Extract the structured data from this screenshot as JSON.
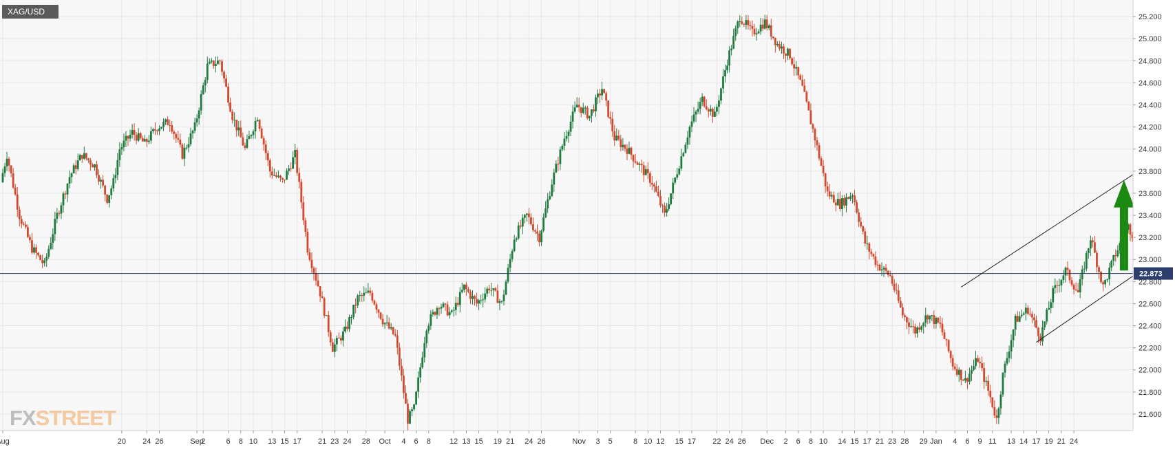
{
  "symbol": "XAG/USD",
  "watermark": {
    "part1": "FX",
    "part2": "STREET"
  },
  "current_price_label": "22.873",
  "colors": {
    "up": "#1e7a3e",
    "down": "#d1492e",
    "price_line": "#2c3e6b",
    "grid": "#e6e6e6",
    "arrow": "#1c8a12",
    "badge": "#5a5a5a"
  },
  "chart_data": {
    "type": "candlestick",
    "title": "",
    "xlabel": "",
    "ylabel": "",
    "ylim": [
      21.45,
      25.35
    ],
    "current_price": 22.873,
    "y_ticks": [
      "21.600",
      "21.800",
      "22.000",
      "22.200",
      "22.400",
      "22.600",
      "22.800",
      "23.000",
      "23.200",
      "23.400",
      "23.600",
      "23.800",
      "24.000",
      "24.200",
      "24.400",
      "24.600",
      "24.800",
      "25.000",
      "25.200"
    ],
    "x_ticks": [
      {
        "t": 0,
        "label": "Aug"
      },
      {
        "t": 19,
        "label": "20"
      },
      {
        "t": 23,
        "label": "24"
      },
      {
        "t": 25,
        "label": "26"
      },
      {
        "t": 31,
        "label": "Sep"
      },
      {
        "t": 32,
        "label": "2"
      },
      {
        "t": 36,
        "label": "6"
      },
      {
        "t": 38,
        "label": "8"
      },
      {
        "t": 40,
        "label": "10"
      },
      {
        "t": 43,
        "label": "13"
      },
      {
        "t": 45,
        "label": "15"
      },
      {
        "t": 47,
        "label": "17"
      },
      {
        "t": 51,
        "label": "21"
      },
      {
        "t": 53,
        "label": "23"
      },
      {
        "t": 55,
        "label": "24"
      },
      {
        "t": 58,
        "label": "28"
      },
      {
        "t": 61,
        "label": "Oct"
      },
      {
        "t": 64,
        "label": "4"
      },
      {
        "t": 66,
        "label": "6"
      },
      {
        "t": 68,
        "label": "8"
      },
      {
        "t": 72,
        "label": "12"
      },
      {
        "t": 74,
        "label": "13"
      },
      {
        "t": 76,
        "label": "15"
      },
      {
        "t": 79,
        "label": "19"
      },
      {
        "t": 81,
        "label": "21"
      },
      {
        "t": 84,
        "label": "24"
      },
      {
        "t": 86,
        "label": "26"
      },
      {
        "t": 92,
        "label": "Nov"
      },
      {
        "t": 95,
        "label": "3"
      },
      {
        "t": 97,
        "label": "5"
      },
      {
        "t": 101,
        "label": "8"
      },
      {
        "t": 103,
        "label": "10"
      },
      {
        "t": 105,
        "label": "12"
      },
      {
        "t": 108,
        "label": "15"
      },
      {
        "t": 110,
        "label": "17"
      },
      {
        "t": 114,
        "label": "22"
      },
      {
        "t": 116,
        "label": "24"
      },
      {
        "t": 118,
        "label": "26"
      },
      {
        "t": 122,
        "label": "Dec"
      },
      {
        "t": 125,
        "label": "2"
      },
      {
        "t": 127,
        "label": "6"
      },
      {
        "t": 129,
        "label": "8"
      },
      {
        "t": 131,
        "label": "10"
      },
      {
        "t": 134,
        "label": "14"
      },
      {
        "t": 136,
        "label": "15"
      },
      {
        "t": 138,
        "label": "17"
      },
      {
        "t": 140,
        "label": "21"
      },
      {
        "t": 142,
        "label": "23"
      },
      {
        "t": 144,
        "label": "28"
      },
      {
        "t": 147,
        "label": "29"
      },
      {
        "t": 149,
        "label": "Jan"
      },
      {
        "t": 152,
        "label": "4"
      },
      {
        "t": 154,
        "label": "6"
      },
      {
        "t": 156,
        "label": "9"
      },
      {
        "t": 158,
        "label": "11"
      },
      {
        "t": 161,
        "label": "13"
      },
      {
        "t": 163,
        "label": "14"
      },
      {
        "t": 165,
        "label": "17"
      },
      {
        "t": 167,
        "label": "19"
      },
      {
        "t": 169,
        "label": "21"
      },
      {
        "t": 171,
        "label": "24"
      }
    ],
    "price_path": [
      [
        0,
        23.7
      ],
      [
        1,
        23.95
      ],
      [
        3,
        23.4
      ],
      [
        5,
        23.1
      ],
      [
        7,
        22.95
      ],
      [
        9,
        23.4
      ],
      [
        11,
        23.75
      ],
      [
        13,
        23.95
      ],
      [
        15,
        23.85
      ],
      [
        17,
        23.55
      ],
      [
        18,
        23.7
      ],
      [
        19,
        24.0
      ],
      [
        21,
        24.15
      ],
      [
        23,
        24.05
      ],
      [
        25,
        24.2
      ],
      [
        27,
        24.25
      ],
      [
        29,
        23.95
      ],
      [
        31,
        24.2
      ],
      [
        33,
        24.75
      ],
      [
        35,
        24.8
      ],
      [
        37,
        24.3
      ],
      [
        39,
        24.0
      ],
      [
        41,
        24.3
      ],
      [
        43,
        23.8
      ],
      [
        45,
        23.7
      ],
      [
        47,
        23.95
      ],
      [
        49,
        23.1
      ],
      [
        51,
        22.7
      ],
      [
        53,
        22.2
      ],
      [
        55,
        22.35
      ],
      [
        57,
        22.65
      ],
      [
        59,
        22.7
      ],
      [
        61,
        22.45
      ],
      [
        63,
        22.3
      ],
      [
        65,
        21.55
      ],
      [
        66,
        21.65
      ],
      [
        68,
        22.4
      ],
      [
        70,
        22.6
      ],
      [
        72,
        22.5
      ],
      [
        74,
        22.75
      ],
      [
        76,
        22.6
      ],
      [
        78,
        22.75
      ],
      [
        80,
        22.6
      ],
      [
        82,
        23.2
      ],
      [
        84,
        23.4
      ],
      [
        86,
        23.2
      ],
      [
        88,
        23.7
      ],
      [
        90,
        24.1
      ],
      [
        92,
        24.4
      ],
      [
        94,
        24.3
      ],
      [
        96,
        24.55
      ],
      [
        98,
        24.1
      ],
      [
        100,
        24.0
      ],
      [
        102,
        23.85
      ],
      [
        104,
        23.7
      ],
      [
        106,
        23.4
      ],
      [
        108,
        23.8
      ],
      [
        110,
        24.2
      ],
      [
        112,
        24.45
      ],
      [
        114,
        24.3
      ],
      [
        116,
        24.8
      ],
      [
        118,
        25.2
      ],
      [
        120,
        25.05
      ],
      [
        122,
        25.15
      ],
      [
        124,
        24.95
      ],
      [
        126,
        24.85
      ],
      [
        128,
        24.55
      ],
      [
        130,
        24.1
      ],
      [
        132,
        23.6
      ],
      [
        134,
        23.5
      ],
      [
        136,
        23.6
      ],
      [
        138,
        23.15
      ],
      [
        140,
        22.95
      ],
      [
        142,
        22.85
      ],
      [
        144,
        22.5
      ],
      [
        146,
        22.35
      ],
      [
        148,
        22.5
      ],
      [
        150,
        22.4
      ],
      [
        152,
        22.05
      ],
      [
        154,
        21.9
      ],
      [
        156,
        22.1
      ],
      [
        158,
        21.75
      ],
      [
        159,
        21.55
      ],
      [
        160,
        21.95
      ],
      [
        162,
        22.45
      ],
      [
        164,
        22.55
      ],
      [
        166,
        22.3
      ],
      [
        168,
        22.7
      ],
      [
        170,
        22.9
      ],
      [
        172,
        22.7
      ],
      [
        174,
        23.2
      ],
      [
        176,
        22.75
      ],
      [
        178,
        23.05
      ],
      [
        180,
        23.3
      ],
      [
        181,
        23.2
      ],
      [
        182,
        22.87
      ]
    ],
    "annotations": {
      "channel_upper": [
        [
          153,
          22.75
        ],
        [
          188,
          24.05
        ]
      ],
      "channel_lower": [
        [
          165,
          22.25
        ],
        [
          183,
          22.95
        ]
      ],
      "arrow": {
        "t": 179,
        "from": 22.9,
        "to": 23.72,
        "direction": "up"
      }
    }
  }
}
